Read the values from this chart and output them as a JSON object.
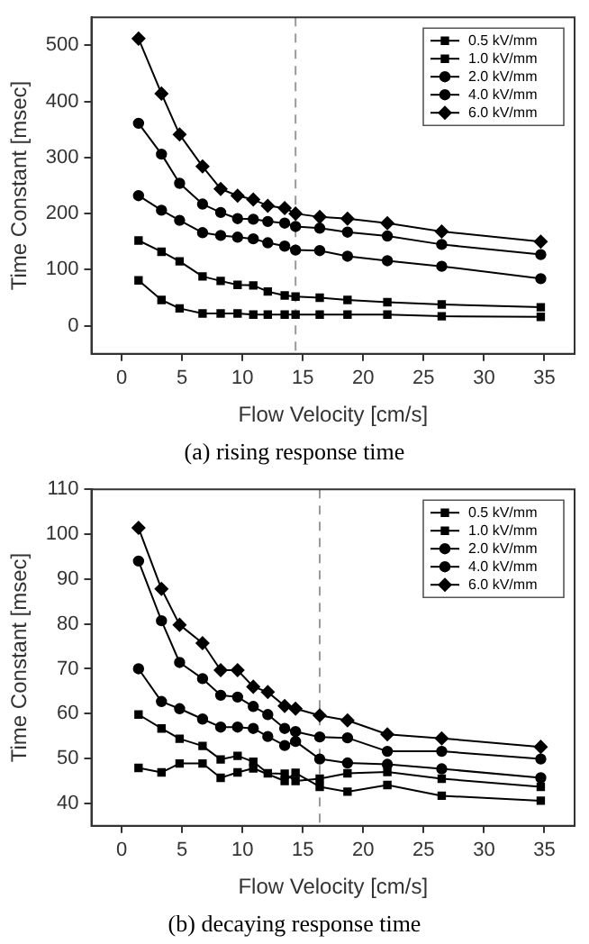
{
  "chart_data": [
    {
      "type": "line",
      "xlabel": "Flow Velocity [cm/s]",
      "ylabel": "Time Constant [msec]",
      "annotations": [
        "(a) rising response time"
      ],
      "x": [
        1.4,
        3.3,
        4.8,
        6.7,
        8.2,
        9.6,
        10.9,
        12.1,
        13.5,
        14.4,
        16.4,
        18.7,
        22,
        26.5,
        34.7
      ],
      "xlim": [
        -2.5,
        37.5
      ],
      "xticks": [
        0,
        5,
        10,
        15,
        20,
        25,
        30,
        35
      ],
      "ylim": [
        -50,
        550
      ],
      "yticks": [
        0,
        100,
        200,
        300,
        400,
        500
      ],
      "grid": false,
      "legend": "top right",
      "line_style": "solid",
      "ref_lines": [
        {
          "axis": "x",
          "value": 14.4,
          "color": "#999999",
          "line_style": "dashed"
        }
      ],
      "series": [
        {
          "name": "0.5 kV/mm",
          "color": "#000000",
          "marker": "square",
          "values": [
            81,
            46,
            31,
            22,
            22,
            22,
            20,
            20,
            20,
            20,
            20,
            20,
            20,
            17,
            16
          ]
        },
        {
          "name": "1.0 kV/mm",
          "color": "#000000",
          "marker": "square",
          "values": [
            152,
            132,
            115,
            88,
            80,
            73,
            72,
            61,
            54,
            52,
            50,
            46,
            42,
            38,
            33
          ]
        },
        {
          "name": "2.0 kV/mm",
          "color": "#000000",
          "marker": "circle",
          "values": [
            232,
            206,
            188,
            166,
            161,
            158,
            155,
            148,
            142,
            135,
            134,
            124,
            116,
            106,
            84
          ]
        },
        {
          "name": "4.0 kV/mm",
          "color": "#000000",
          "marker": "circle",
          "values": [
            361,
            306,
            254,
            217,
            202,
            191,
            190,
            186,
            183,
            177,
            174,
            167,
            160,
            145,
            127
          ]
        },
        {
          "name": "6.0 kV/mm",
          "color": "#000000",
          "marker": "diamond",
          "values": [
            512,
            414,
            341,
            284,
            244,
            232,
            225,
            214,
            210,
            200,
            194,
            191,
            183,
            168,
            150
          ]
        }
      ]
    },
    {
      "type": "line",
      "xlabel": "Flow Velocity [cm/s]",
      "ylabel": "Time Constant [msec]",
      "annotations": [
        "(b) decaying response time"
      ],
      "x": [
        1.4,
        3.3,
        4.8,
        6.7,
        8.2,
        9.6,
        10.9,
        12.1,
        13.5,
        14.4,
        16.4,
        18.7,
        22,
        26.5,
        34.7
      ],
      "xlim": [
        -2.5,
        37.5
      ],
      "xticks": [
        0,
        5,
        10,
        15,
        20,
        25,
        30,
        35
      ],
      "ylim": [
        35,
        110
      ],
      "yticks": [
        40,
        50,
        60,
        70,
        80,
        90,
        100,
        110
      ],
      "grid": false,
      "legend": "top right",
      "line_style": "solid",
      "ref_lines": [
        {
          "axis": "x",
          "value": 16.4,
          "color": "#999999",
          "line_style": "dashed"
        }
      ],
      "series": [
        {
          "name": "0.5 kV/mm",
          "color": "#000000",
          "marker": "square",
          "values": [
            47.9,
            46.9,
            48.9,
            48.9,
            45.7,
            46.9,
            47.8,
            null,
            45,
            46.8,
            43.7,
            42.6,
            44.1,
            41.7,
            40.6
          ]
        },
        {
          "name": "1.0 kV/mm",
          "color": "#000000",
          "marker": "square",
          "values": [
            59.8,
            56.7,
            54.4,
            52.8,
            49.8,
            50.6,
            49.3,
            46.7,
            46.6,
            45,
            45.5,
            46.7,
            47,
            45.5,
            43.7
          ]
        },
        {
          "name": "2.0 kV/mm",
          "color": "#000000",
          "marker": "circle",
          "values": [
            70,
            62.7,
            61.1,
            58.8,
            57,
            57,
            56.7,
            54.9,
            52.9,
            53.8,
            49.9,
            49,
            48.7,
            47.7,
            45.7
          ]
        },
        {
          "name": "4.0 kV/mm",
          "color": "#000000",
          "marker": "circle",
          "values": [
            94,
            80.7,
            71.4,
            67.8,
            64.1,
            63.7,
            61.6,
            59.8,
            56.7,
            56,
            54.8,
            54.6,
            51.6,
            51.6,
            49.9
          ]
        },
        {
          "name": "6.0 kV/mm",
          "color": "#000000",
          "marker": "diamond",
          "values": [
            101.4,
            87.8,
            79.8,
            75.7,
            69.7,
            69.7,
            66,
            64.8,
            61.7,
            61.1,
            59.6,
            58.5,
            55.4,
            54.5,
            52.6
          ]
        }
      ]
    }
  ]
}
